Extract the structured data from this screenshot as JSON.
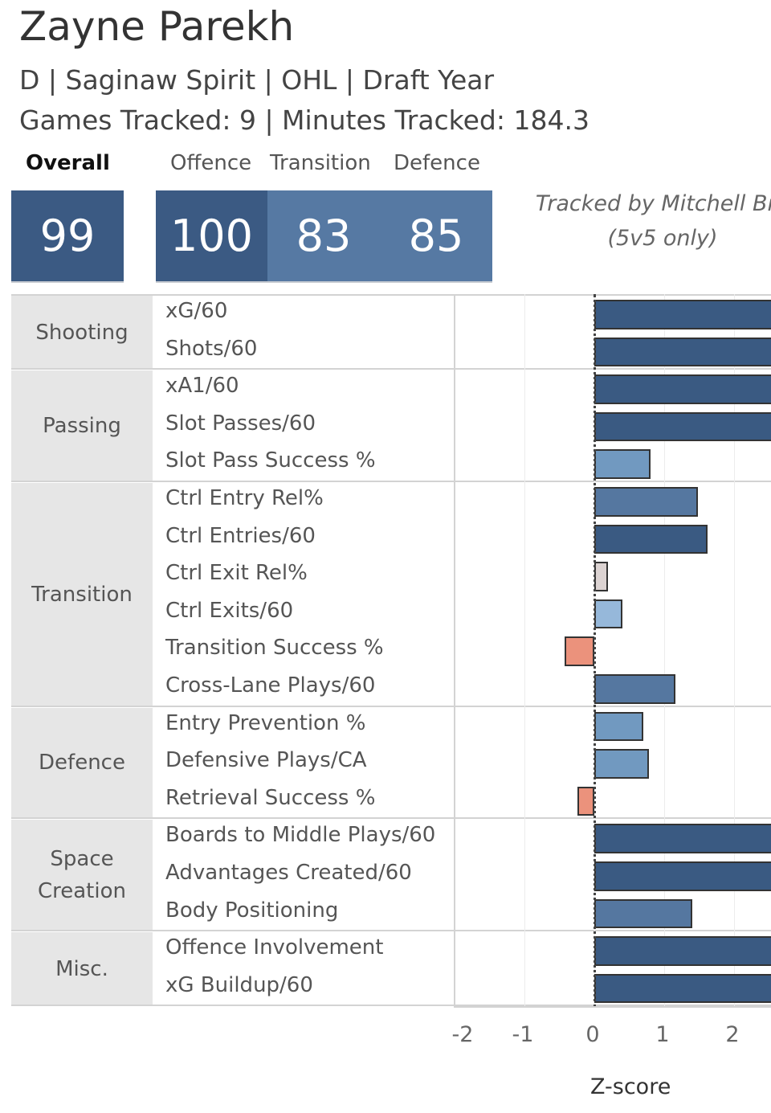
{
  "header": {
    "title": "Zayne Parekh",
    "subtitle": "D | Saginaw Spirit | OHL | Draft Year",
    "tracking": "Games Tracked: 9 | Minutes Tracked: 184.3"
  },
  "scores": {
    "overall": {
      "label": "Overall",
      "value": "99"
    },
    "offence": {
      "label": "Offence",
      "value": "100"
    },
    "transition": {
      "label": "Transition",
      "value": "83"
    },
    "defence": {
      "label": "Defence",
      "value": "85"
    }
  },
  "credit": {
    "line1": "Tracked by Mitchell Bro",
    "line2": "(5v5 only)"
  },
  "colors": {
    "dark": "#3a5a82",
    "mid": "#5577a0",
    "light": "#7199c0",
    "lighter": "#96b8da",
    "neutral": "#dcd3d2",
    "negative": "#eb927c"
  },
  "chart_data": {
    "type": "bar",
    "orientation": "horizontal",
    "xlabel": "Z-score",
    "xlim": [
      -2,
      2.6
    ],
    "xticks": [
      "-2",
      "-1",
      "0",
      "1",
      "2"
    ],
    "groups": [
      {
        "name": "Shooting",
        "metrics": [
          {
            "label": "xG/60",
            "value": 3.0,
            "color": "dark"
          },
          {
            "label": "Shots/60",
            "value": 3.0,
            "color": "dark"
          }
        ]
      },
      {
        "name": "Passing",
        "metrics": [
          {
            "label": "xA1/60",
            "value": 3.0,
            "color": "dark"
          },
          {
            "label": "Slot Passes/60",
            "value": 3.0,
            "color": "dark"
          },
          {
            "label": "Slot Pass Success %",
            "value": 0.8,
            "color": "light"
          }
        ]
      },
      {
        "name": "Transition",
        "metrics": [
          {
            "label": "Ctrl Entry Rel%",
            "value": 1.48,
            "color": "mid"
          },
          {
            "label": "Ctrl Entries/60",
            "value": 1.62,
            "color": "dark"
          },
          {
            "label": "Ctrl Exit Rel%",
            "value": 0.19,
            "color": "neutral"
          },
          {
            "label": "Ctrl Exits/60",
            "value": 0.4,
            "color": "lighter"
          },
          {
            "label": "Transition Success %",
            "value": -0.43,
            "color": "negative"
          },
          {
            "label": "Cross-Lane Plays/60",
            "value": 1.16,
            "color": "mid"
          }
        ]
      },
      {
        "name": "Defence",
        "metrics": [
          {
            "label": "Entry Prevention %",
            "value": 0.7,
            "color": "light"
          },
          {
            "label": "Defensive Plays/CA",
            "value": 0.78,
            "color": "light"
          },
          {
            "label": "Retrieval Success %",
            "value": -0.24,
            "color": "negative"
          }
        ]
      },
      {
        "name": "Space Creation",
        "metrics": [
          {
            "label": "Boards to Middle Plays/60",
            "value": 3.0,
            "color": "dark"
          },
          {
            "label": "Advantages Created/60",
            "value": 3.0,
            "color": "dark"
          },
          {
            "label": "Body Positioning",
            "value": 1.4,
            "color": "mid"
          }
        ]
      },
      {
        "name": "Misc.",
        "metrics": [
          {
            "label": "Offence Involvement",
            "value": 3.0,
            "color": "dark"
          },
          {
            "label": "xG Buildup/60",
            "value": 3.0,
            "color": "dark"
          }
        ]
      }
    ]
  }
}
